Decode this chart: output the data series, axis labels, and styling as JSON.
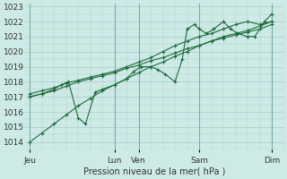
{
  "xlabel": "Pression niveau de la mer( hPa )",
  "ylim": [
    1013.5,
    1023.2
  ],
  "yticks": [
    1014,
    1015,
    1016,
    1017,
    1018,
    1019,
    1020,
    1021,
    1022,
    1023
  ],
  "xlim": [
    -0.2,
    10.5
  ],
  "day_positions": [
    0.0,
    3.5,
    4.5,
    7.0,
    10.0
  ],
  "day_labels": [
    "Jeu",
    "Lun",
    "Ven",
    "Sam",
    "Dim"
  ],
  "bg_color": "#ceeae7",
  "grid_color": "#a8ccc9",
  "line_color": "#1e6b3c",
  "vline_x": [
    0.0,
    3.5,
    4.5,
    7.0,
    10.0
  ],
  "s1_x": [
    0.0,
    0.5,
    1.0,
    1.5,
    2.0,
    2.5,
    3.0,
    3.5,
    4.0,
    4.5,
    5.0,
    5.5,
    6.0,
    6.5,
    7.0,
    7.5,
    8.0,
    8.5,
    9.0,
    9.5,
    10.0
  ],
  "s1_y": [
    1014.0,
    1014.6,
    1015.2,
    1015.8,
    1016.4,
    1016.9,
    1017.4,
    1017.8,
    1018.2,
    1018.6,
    1019.0,
    1019.3,
    1019.7,
    1020.0,
    1020.4,
    1020.7,
    1021.0,
    1021.2,
    1021.4,
    1021.7,
    1022.0
  ],
  "s2_x": [
    0.0,
    0.5,
    1.0,
    1.5,
    2.0,
    2.5,
    3.0,
    3.5,
    4.0,
    4.5,
    5.0,
    5.5,
    6.0,
    6.5,
    7.0,
    7.5,
    8.0,
    8.5,
    9.0,
    9.5,
    10.0
  ],
  "s2_y": [
    1017.0,
    1017.2,
    1017.4,
    1017.7,
    1018.0,
    1018.2,
    1018.4,
    1018.6,
    1018.9,
    1019.1,
    1019.4,
    1019.6,
    1019.9,
    1020.2,
    1020.4,
    1020.7,
    1020.9,
    1021.1,
    1021.3,
    1021.5,
    1021.8
  ],
  "s3_x": [
    0.0,
    0.5,
    1.0,
    1.3,
    1.6,
    2.0,
    2.3,
    2.7,
    3.0,
    3.5,
    4.0,
    4.3,
    4.6,
    5.0,
    5.3,
    5.6,
    6.0,
    6.3,
    6.5,
    6.8,
    7.0,
    7.3,
    7.6,
    8.0,
    8.3,
    8.6,
    9.0,
    9.3,
    9.7,
    10.0
  ],
  "s3_y": [
    1017.0,
    1017.2,
    1017.5,
    1017.8,
    1018.0,
    1015.6,
    1015.2,
    1017.3,
    1017.5,
    1017.8,
    1018.2,
    1018.7,
    1019.0,
    1019.0,
    1018.8,
    1018.5,
    1018.0,
    1019.5,
    1021.5,
    1021.8,
    1021.5,
    1021.2,
    1021.5,
    1022.0,
    1021.5,
    1021.2,
    1021.0,
    1021.0,
    1022.0,
    1022.5
  ],
  "s4_x": [
    0.0,
    0.5,
    1.0,
    1.5,
    2.0,
    2.5,
    3.0,
    3.5,
    4.0,
    4.5,
    5.0,
    5.5,
    6.0,
    6.5,
    7.0,
    7.5,
    8.0,
    8.5,
    9.0,
    9.5,
    10.0
  ],
  "s4_y": [
    1017.2,
    1017.4,
    1017.6,
    1017.9,
    1018.1,
    1018.3,
    1018.5,
    1018.7,
    1019.0,
    1019.3,
    1019.6,
    1020.0,
    1020.4,
    1020.7,
    1021.0,
    1021.2,
    1021.5,
    1021.8,
    1022.0,
    1021.8,
    1022.0
  ]
}
